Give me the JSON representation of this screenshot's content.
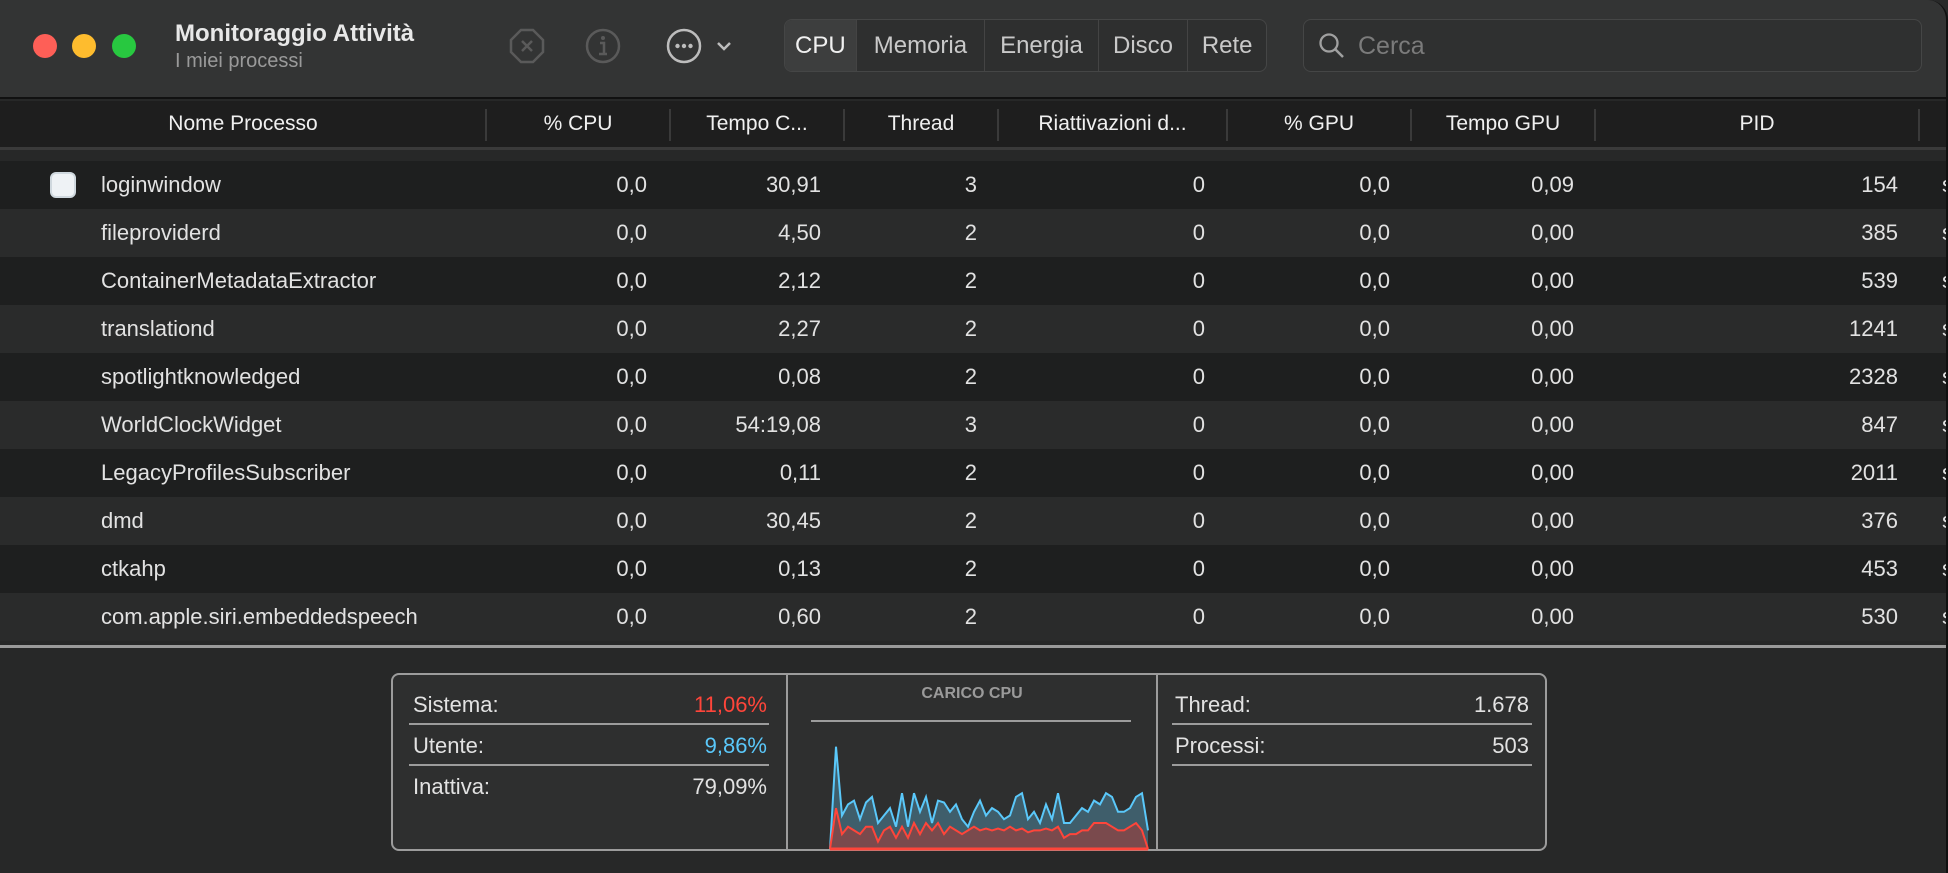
{
  "window": {
    "title": "Monitoraggio Attività",
    "subtitle": "I miei processi"
  },
  "toolbar": {
    "icons": [
      "stop-process-icon",
      "info-icon",
      "more-actions-icon",
      "chevron-down-icon"
    ],
    "tabs": [
      {
        "label": "CPU",
        "selected": true
      },
      {
        "label": "Memoria",
        "selected": false
      },
      {
        "label": "Energia",
        "selected": false
      },
      {
        "label": "Disco",
        "selected": false
      },
      {
        "label": "Rete",
        "selected": false
      }
    ],
    "search_placeholder": "Cerca",
    "search_value": ""
  },
  "table": {
    "columns": [
      "Nome Processo",
      "% CPU",
      "Tempo C...",
      "Thread",
      "Riattivazioni d...",
      "% GPU",
      "Tempo GPU",
      "PID"
    ],
    "rows": [
      {
        "name": "loginwindow",
        "cpu": "0,0",
        "time": "30,91",
        "threads": "3",
        "wakeups": "0",
        "gpu": "0,0",
        "gpu_time": "0,09",
        "pid": "154",
        "user": "s",
        "has_icon": true
      },
      {
        "name": "fileproviderd",
        "cpu": "0,0",
        "time": "4,50",
        "threads": "2",
        "wakeups": "0",
        "gpu": "0,0",
        "gpu_time": "0,00",
        "pid": "385",
        "user": "s"
      },
      {
        "name": "ContainerMetadataExtractor",
        "cpu": "0,0",
        "time": "2,12",
        "threads": "2",
        "wakeups": "0",
        "gpu": "0,0",
        "gpu_time": "0,00",
        "pid": "539",
        "user": "s"
      },
      {
        "name": "translationd",
        "cpu": "0,0",
        "time": "2,27",
        "threads": "2",
        "wakeups": "0",
        "gpu": "0,0",
        "gpu_time": "0,00",
        "pid": "1241",
        "user": "s"
      },
      {
        "name": "spotlightknowledged",
        "cpu": "0,0",
        "time": "0,08",
        "threads": "2",
        "wakeups": "0",
        "gpu": "0,0",
        "gpu_time": "0,00",
        "pid": "2328",
        "user": "s"
      },
      {
        "name": "WorldClockWidget",
        "cpu": "0,0",
        "time": "54:19,08",
        "threads": "3",
        "wakeups": "0",
        "gpu": "0,0",
        "gpu_time": "0,00",
        "pid": "847",
        "user": "s"
      },
      {
        "name": "LegacyProfilesSubscriber",
        "cpu": "0,0",
        "time": "0,11",
        "threads": "2",
        "wakeups": "0",
        "gpu": "0,0",
        "gpu_time": "0,00",
        "pid": "2011",
        "user": "s"
      },
      {
        "name": "dmd",
        "cpu": "0,0",
        "time": "30,45",
        "threads": "2",
        "wakeups": "0",
        "gpu": "0,0",
        "gpu_time": "0,00",
        "pid": "376",
        "user": "s"
      },
      {
        "name": "ctkahp",
        "cpu": "0,0",
        "time": "0,13",
        "threads": "2",
        "wakeups": "0",
        "gpu": "0,0",
        "gpu_time": "0,00",
        "pid": "453",
        "user": "s"
      },
      {
        "name": "com.apple.siri.embeddedspeech",
        "cpu": "0,0",
        "time": "0,60",
        "threads": "2",
        "wakeups": "0",
        "gpu": "0,0",
        "gpu_time": "0,00",
        "pid": "530",
        "user": "s"
      }
    ]
  },
  "summary": {
    "system": {
      "label": "Sistema:",
      "value": "11,06%",
      "color": "#ff453a"
    },
    "user": {
      "label": "Utente:",
      "value": "9,86%",
      "color": "#5ac8fa"
    },
    "idle": {
      "label": "Inattiva:",
      "value": "79,09%"
    },
    "threads": {
      "label": "Thread:",
      "value": "1.678"
    },
    "processes": {
      "label": "Processi:",
      "value": "503"
    },
    "chart_title": "CARICO CPU"
  },
  "chart_data": {
    "type": "area",
    "title": "CARICO CPU",
    "ylim": [
      0,
      100
    ],
    "series": [
      {
        "color": "#5ac8fa",
        "values": [
          0,
          55,
          18,
          24,
          26,
          16,
          25,
          28,
          14,
          18,
          22,
          12,
          30,
          12,
          30,
          20,
          28,
          14,
          26,
          25,
          20,
          24,
          16,
          12,
          20,
          26,
          18,
          22,
          20,
          16,
          18,
          28,
          30,
          16,
          20,
          14,
          24,
          16,
          30,
          14,
          14,
          18,
          22,
          20,
          26,
          24,
          30,
          28,
          20,
          20,
          22,
          28,
          30,
          10
        ]
      },
      {
        "color": "#ff453a",
        "values": [
          0,
          22,
          8,
          12,
          10,
          8,
          12,
          12,
          4,
          10,
          12,
          6,
          12,
          6,
          14,
          8,
          14,
          10,
          14,
          8,
          12,
          10,
          8,
          10,
          12,
          10,
          11,
          10,
          11,
          10,
          12,
          10,
          11,
          9,
          10,
          10,
          11,
          10,
          12,
          6,
          8,
          8,
          10,
          10,
          14,
          14,
          14,
          12,
          10,
          10,
          12,
          14,
          10,
          0
        ]
      }
    ]
  }
}
